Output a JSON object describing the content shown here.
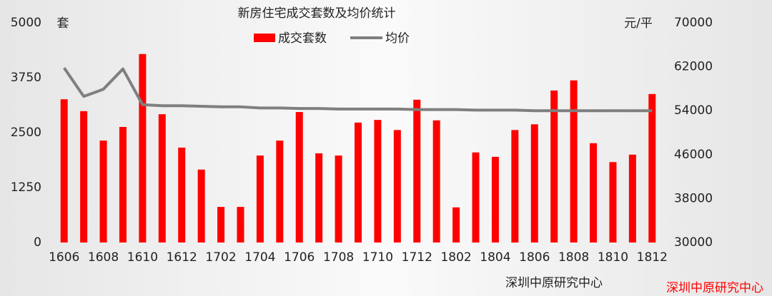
{
  "chart_data": {
    "type": "bar_line",
    "title": "新房住宅成交套数及均价统计",
    "y_unit": "套",
    "y2_unit": "元/平",
    "categories": [
      "1606",
      null,
      "1608",
      null,
      "1610",
      null,
      "1612",
      null,
      "1702",
      null,
      "1704",
      null,
      "1706",
      null,
      "1708",
      null,
      "1710",
      null,
      "1712",
      null,
      "1802",
      null,
      "1804",
      null,
      "1806",
      null,
      "1808",
      null,
      "1810",
      null,
      "1812"
    ],
    "series": [
      {
        "name": "成交套数",
        "color": "#ff0000",
        "kind": "bar",
        "values": [
          3260,
          2990,
          2320,
          2630,
          4290,
          2920,
          2160,
          1660,
          810,
          810,
          1980,
          2320,
          2970,
          2030,
          1980,
          2730,
          2790,
          2560,
          3250,
          2780,
          800,
          2050,
          1950,
          2560,
          2690,
          3460,
          3690,
          2260,
          1830,
          2000,
          3380
        ]
      },
      {
        "name": "均价",
        "color": "#7f7f7f",
        "kind": "line",
        "axis": "y2",
        "values": [
          61800,
          56600,
          57900,
          61600,
          55100,
          54900,
          54900,
          54800,
          54700,
          54700,
          54500,
          54500,
          54400,
          54400,
          54300,
          54300,
          54300,
          54300,
          54200,
          54200,
          54200,
          54100,
          54100,
          54100,
          54000,
          54000,
          54000,
          54000,
          54000,
          54000,
          54000
        ]
      }
    ],
    "ylim": [
      0,
      5000
    ],
    "yticks": [
      0,
      1250,
      2500,
      3750,
      5000
    ],
    "y2lim": [
      30000,
      70000
    ],
    "y2ticks": [
      30000,
      38000,
      46000,
      54000,
      62000,
      70000
    ],
    "annotations": [
      "深圳中原研究中心",
      "深圳中原研究中心"
    ]
  }
}
